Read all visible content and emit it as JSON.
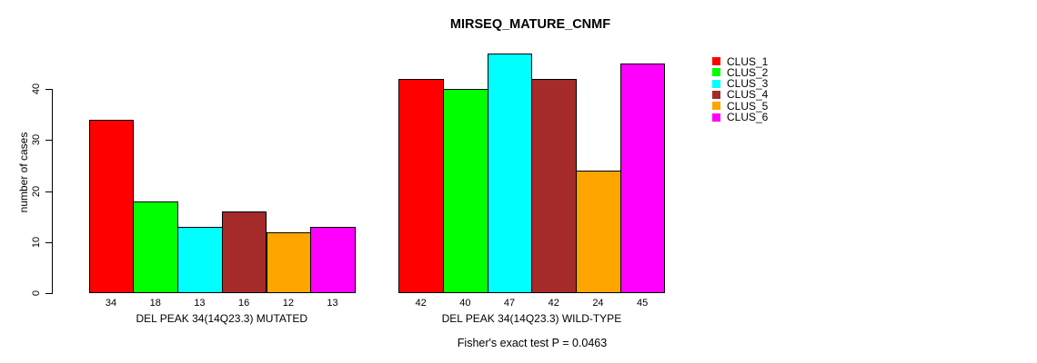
{
  "chart_data": {
    "type": "bar",
    "title": "MIRSEQ_MATURE_CNMF",
    "xlabel": "",
    "ylabel": "number of cases",
    "ylim": [
      0,
      47
    ],
    "yticks": [
      0,
      10,
      20,
      30,
      40
    ],
    "grid": false,
    "legend_position": "top-right",
    "bar_value_labels_shown": true,
    "categories": [
      "DEL PEAK 34(14Q23.3) MUTATED",
      "DEL PEAK 34(14Q23.3) WILD-TYPE"
    ],
    "series": [
      {
        "name": "CLUS_1",
        "color": "#FF0000",
        "values": [
          34,
          42
        ]
      },
      {
        "name": "CLUS_2",
        "color": "#00FF00",
        "values": [
          18,
          40
        ]
      },
      {
        "name": "CLUS_3",
        "color": "#00FFFF",
        "values": [
          13,
          47
        ]
      },
      {
        "name": "CLUS_4",
        "color": "#A52A2A",
        "values": [
          16,
          42
        ]
      },
      {
        "name": "CLUS_5",
        "color": "#FFA500",
        "values": [
          12,
          24
        ]
      },
      {
        "name": "CLUS_6",
        "color": "#FF00FF",
        "values": [
          13,
          45
        ]
      }
    ],
    "annotation": "Fisher's exact test P = 0.0463",
    "background": "#FFFFFF",
    "axis_color": "#000000"
  }
}
